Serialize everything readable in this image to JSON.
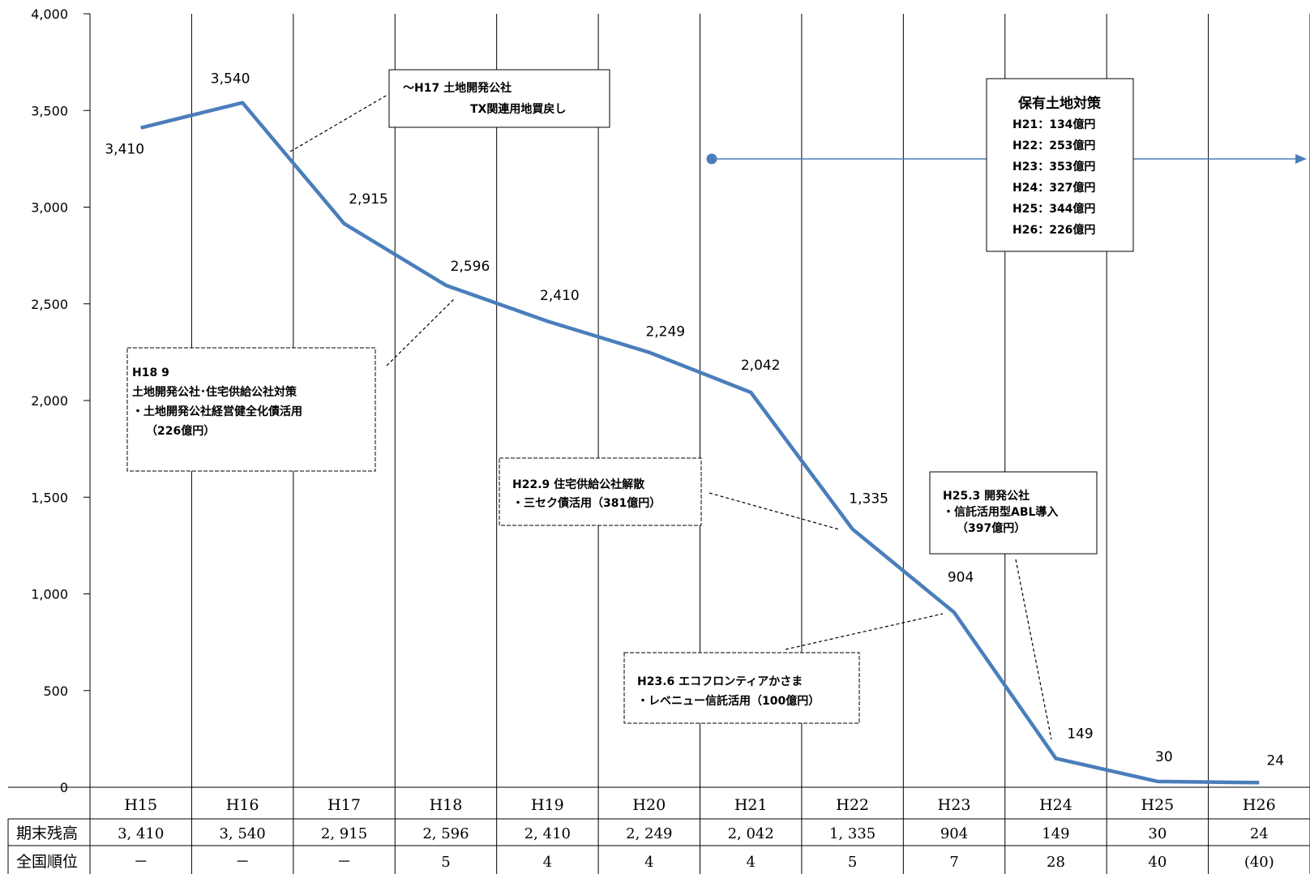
{
  "chart_data": {
    "type": "line",
    "categories": [
      "H15",
      "H16",
      "H17",
      "H18",
      "H19",
      "H20",
      "H21",
      "H22",
      "H23",
      "H24",
      "H25",
      "H26"
    ],
    "series": [
      {
        "values": [
          3410,
          3540,
          2915,
          2596,
          2410,
          2249,
          2042,
          1335,
          904,
          149,
          30,
          24
        ]
      }
    ],
    "data_labels": [
      "3,410",
      "3,540",
      "2,915",
      "2,596",
      "2,410",
      "2,249",
      "2,042",
      "1,335",
      "904",
      "149",
      "30",
      "24"
    ],
    "ylim": [
      0,
      4000
    ],
    "yticks": [
      "0",
      "500",
      "1,000",
      "1,500",
      "2,000",
      "2,500",
      "3,000",
      "3,500",
      "4,000"
    ],
    "line_color": "#4a7ebb",
    "grid": "vertical",
    "table": {
      "rows": [
        {
          "label": "期末残高",
          "values": [
            "3, 410",
            "3, 540",
            "2, 915",
            "2, 596",
            "2, 410",
            "2, 249",
            "2, 042",
            "1, 335",
            "904",
            "149",
            "30",
            "24"
          ]
        },
        {
          "label": "全国順位",
          "values": [
            "－",
            "－",
            "－",
            "5",
            "4",
            "4",
            "4",
            "5",
            "7",
            "28",
            "40",
            "(40)"
          ]
        }
      ]
    },
    "annotations": {
      "h17": [
        "～H17  土地開発公社",
        "TX関連用地買戻し"
      ],
      "h18": [
        "H18 9",
        "土地開発公社･住宅供給公社対策",
        "・土地開発公社経営健全化債活用",
        "（226億円）"
      ],
      "h22": [
        "H22.9  住宅供給公社解散",
        "・三セク債活用（381億円）"
      ],
      "h23": [
        "H23.6  エコフロンティアかさま",
        "・レベニュー信託活用（100億円）"
      ],
      "h25": [
        "H25.3  開発公社",
        "・信託活用型ABL導入",
        "（397億円）"
      ],
      "hoyu": {
        "title": "保有土地対策",
        "items": [
          "H21：134億円",
          "H22：253億円",
          "H23：353億円",
          "H24：327億円",
          "H25：344億円",
          "H26：226億円"
        ]
      }
    }
  }
}
